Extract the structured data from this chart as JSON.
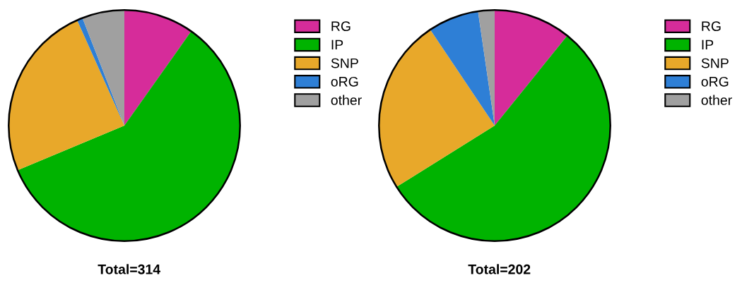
{
  "chart_data": [
    {
      "type": "pie",
      "title": "Total=314",
      "categories": [
        "RG",
        "IP",
        "SNP",
        "oRG",
        "other"
      ],
      "values": [
        9.8,
        58.9,
        24.6,
        0.8,
        5.9
      ],
      "colors": [
        "#d62c9a",
        "#00b300",
        "#e8a82a",
        "#2e7fd6",
        "#a0a0a0"
      ],
      "legend": "right"
    },
    {
      "type": "pie",
      "title": "Total=202",
      "categories": [
        "RG",
        "IP",
        "SNP",
        "oRG",
        "other"
      ],
      "values": [
        10.8,
        55.3,
        24.5,
        7.1,
        2.3
      ],
      "colors": [
        "#d62c9a",
        "#00b300",
        "#e8a82a",
        "#2e7fd6",
        "#a0a0a0"
      ],
      "legend": "right"
    }
  ]
}
